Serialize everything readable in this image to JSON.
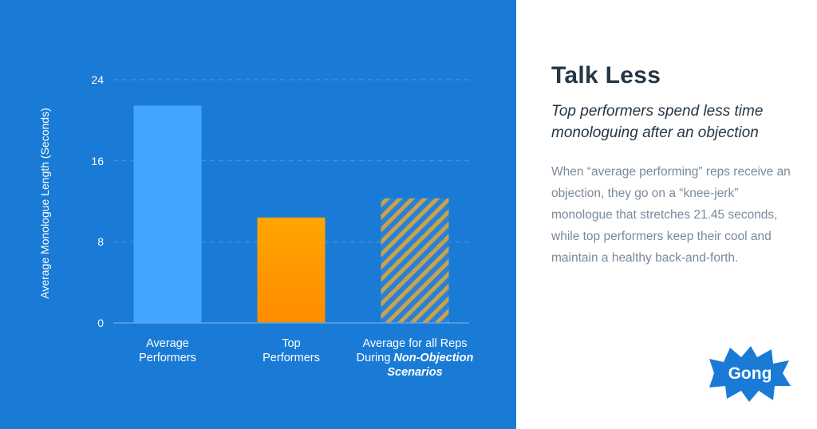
{
  "chart_data": {
    "type": "bar",
    "ylabel": "Average Monologue Length (Seconds)",
    "ylim": [
      0,
      24
    ],
    "yticks": [
      "0",
      "8",
      "16",
      "24"
    ],
    "grid": true,
    "categories": [
      {
        "line1": "Average",
        "line2": "Performers",
        "line3": ""
      },
      {
        "line1": "Top",
        "line2": "Performers",
        "line3": ""
      },
      {
        "line1": "Average for all Reps",
        "line2_prefix": "During ",
        "line2_em": "Non-Objection",
        "line3": "Scenarios"
      }
    ],
    "values": [
      21.45,
      10.4,
      12.3
    ],
    "colors": [
      "#42a5ff",
      "#ff8c00",
      "#c9a24a"
    ]
  },
  "info": {
    "title": "Talk Less",
    "subtitle": "Top performers spend less time monologuing after an objection",
    "body": "When “average performing” reps receive an objection, they go on a “knee-jerk” monologue that stretches 21.45 seconds, while top performers keep their cool and maintain a healthy back-and-forth."
  },
  "logo": {
    "text": "Gong",
    "color": "#1a7bd6"
  }
}
